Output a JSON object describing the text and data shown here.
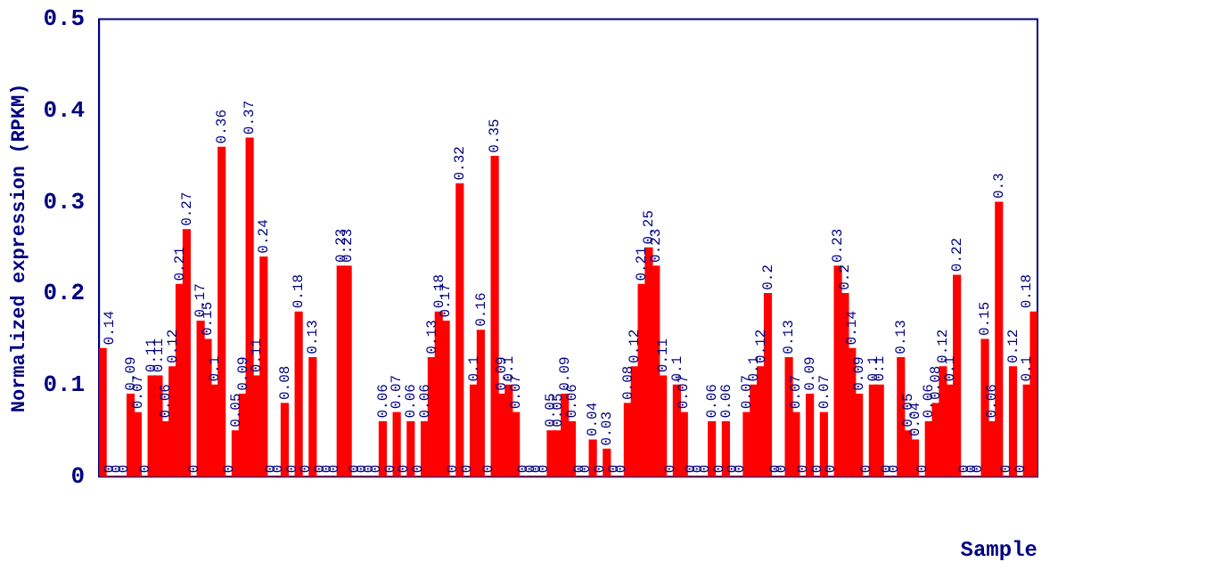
{
  "chart_data": {
    "type": "bar",
    "xlabel": "Sample",
    "ylabel": "Normalized expression (RPKM)",
    "categories": [
      null,
      null,
      null,
      null,
      null,
      null,
      null,
      null,
      null,
      null,
      null,
      null,
      null,
      null,
      null,
      null,
      null,
      null,
      null,
      null,
      null,
      null,
      null,
      null,
      null,
      null,
      null,
      null,
      null,
      null,
      null,
      null,
      null,
      null,
      null,
      null,
      null,
      null,
      null,
      null,
      null,
      null,
      null,
      null,
      null,
      null,
      null,
      null,
      null,
      null,
      null,
      null,
      null,
      null,
      null,
      null,
      null,
      null,
      null,
      null,
      null,
      null,
      null,
      null,
      null,
      null,
      null,
      null,
      null,
      null,
      null,
      null,
      null,
      null,
      null,
      null,
      null,
      null,
      null,
      null,
      null,
      null,
      null,
      null,
      null,
      null,
      null,
      null,
      null,
      null,
      null,
      null,
      null,
      null,
      null,
      null,
      null,
      null,
      null,
      null,
      null,
      null,
      null,
      null,
      null,
      null,
      null,
      null,
      null,
      null,
      null,
      null,
      null,
      null,
      null,
      null,
      null,
      null,
      null,
      null,
      null,
      null,
      null,
      null,
      null,
      null,
      null,
      null,
      null,
      null,
      null,
      null,
      null,
      null
    ],
    "values": [
      0.14,
      0,
      0,
      0,
      0.09,
      0.07,
      0,
      0.11,
      0.11,
      0.06,
      0.12,
      0.21,
      0.27,
      0,
      0.17,
      0.15,
      0.1,
      0.36,
      0,
      0.05,
      0.09,
      0.37,
      0.11,
      0.24,
      0,
      0,
      0.08,
      0,
      0.18,
      0,
      0.13,
      0,
      0,
      0,
      0.23,
      0.23,
      0,
      0,
      0,
      0,
      0.06,
      0,
      0.07,
      0,
      0.06,
      0,
      0.06,
      0.13,
      0.18,
      0.17,
      0,
      0.32,
      0,
      0.1,
      0.16,
      0,
      0.35,
      0.09,
      0.1,
      0.07,
      0,
      0,
      0,
      0,
      0.05,
      0.05,
      0.09,
      0.06,
      0,
      0,
      0.04,
      0,
      0.03,
      0,
      0,
      0.08,
      0.12,
      0.21,
      0.25,
      0.23,
      0.11,
      0,
      0.1,
      0.07,
      0,
      0,
      0,
      0.06,
      0,
      0.06,
      0,
      0,
      0.07,
      0.1,
      0.12,
      0.2,
      0,
      0,
      0.13,
      0.07,
      0,
      0.09,
      0,
      0.07,
      0,
      0.23,
      0.2,
      0.14,
      0.09,
      0,
      0.1,
      0.1,
      0,
      0,
      0.13,
      0.05,
      0.04,
      0,
      0.06,
      0.08,
      0.12,
      0.1,
      0.22,
      0,
      0,
      0,
      0.15,
      0.06,
      0.3,
      0,
      0.12,
      0,
      0.1,
      0.18
    ],
    "color": "#ff0000",
    "ylim": [
      0,
      0.5
    ],
    "yticks": [
      0,
      0.1,
      0.2,
      0.3,
      0.4,
      0.5
    ],
    "data_labels": true,
    "grid": false,
    "legend": false
  }
}
